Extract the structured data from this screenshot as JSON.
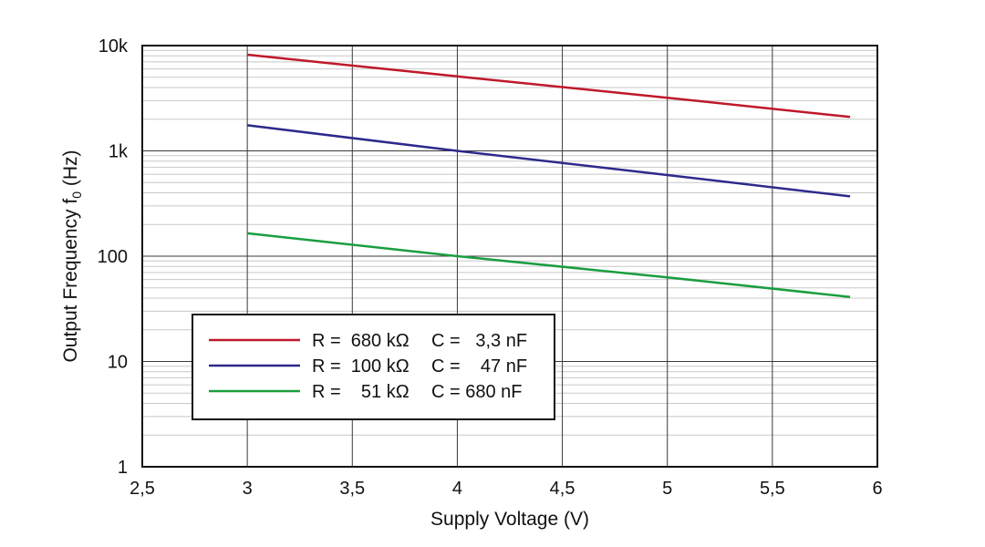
{
  "chart_data": {
    "type": "line",
    "xlabel": "Supply Voltage (V)",
    "ylabel": "Output Frequency f",
    "ylabel_subscript": "0",
    "ylabel_unit": "(Hz)",
    "xlim": [
      2.5,
      6
    ],
    "ylim": [
      1,
      10000
    ],
    "yscale": "log",
    "grid": true,
    "legend_position": "lower-left",
    "x_ticks": [
      {
        "value": 2.5,
        "label": "2,5"
      },
      {
        "value": 3,
        "label": "3"
      },
      {
        "value": 3.5,
        "label": "3,5"
      },
      {
        "value": 4,
        "label": "4"
      },
      {
        "value": 4.5,
        "label": "4,5"
      },
      {
        "value": 5,
        "label": "5"
      },
      {
        "value": 5.5,
        "label": "5,5"
      },
      {
        "value": 6,
        "label": "6"
      }
    ],
    "y_ticks": [
      {
        "value": 1,
        "label": "1"
      },
      {
        "value": 10,
        "label": "10"
      },
      {
        "value": 100,
        "label": "100"
      },
      {
        "value": 1000,
        "label": "1k"
      },
      {
        "value": 10000,
        "label": "10k"
      }
    ],
    "series": [
      {
        "legend_r": "R =  680 kΩ",
        "legend_c": "C =   3,3 nF",
        "color": "#c0182a",
        "x": [
          3,
          4,
          5,
          5.87
        ],
        "y": [
          8200,
          5100,
          3200,
          2100
        ]
      },
      {
        "legend_r": "R =  100 kΩ",
        "legend_c": "C =    47 nF",
        "color": "#2c2a8c",
        "x": [
          3,
          4,
          5,
          5.87
        ],
        "y": [
          1750,
          1000,
          590,
          370
        ]
      },
      {
        "legend_r": "R =    51 kΩ",
        "legend_c": "C = 680 nF",
        "color": "#1a9e3e",
        "x": [
          3,
          4,
          5,
          5.87
        ],
        "y": [
          165,
          100,
          63,
          41
        ]
      }
    ]
  }
}
